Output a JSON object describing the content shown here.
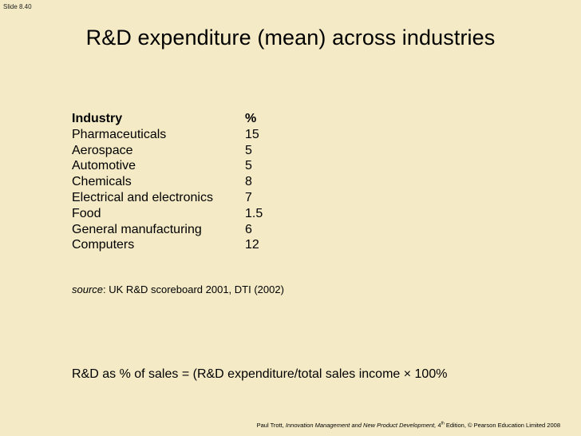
{
  "slide": {
    "number": "Slide 8.40",
    "title": "R&D expenditure (mean) across industries"
  },
  "table": {
    "headers": {
      "industry": "Industry",
      "percent": "%"
    },
    "rows": [
      {
        "industry": "Pharmaceuticals",
        "percent": "15"
      },
      {
        "industry": "Aerospace",
        "percent": "5"
      },
      {
        "industry": "Automotive",
        "percent": "5"
      },
      {
        "industry": "Chemicals",
        "percent": "8"
      },
      {
        "industry": "Electrical and electronics",
        "percent": "7"
      },
      {
        "industry": "Food",
        "percent": "1.5"
      },
      {
        "industry": "General manufacturing",
        "percent": "6"
      },
      {
        "industry": "Computers",
        "percent": "12"
      }
    ]
  },
  "source": {
    "label": "source",
    "text": ": UK R&D scoreboard 2001, DTI (2002)"
  },
  "formula": "R&D as % of sales = (R&D expenditure/total sales income × 100%",
  "footer": {
    "author": "Paul Trott, ",
    "book": "Innovation Management and New Product Development,",
    "edition_num": " 4",
    "edition_sup": "th",
    "rest": " Edition, © Pearson Education Limited 2008"
  }
}
